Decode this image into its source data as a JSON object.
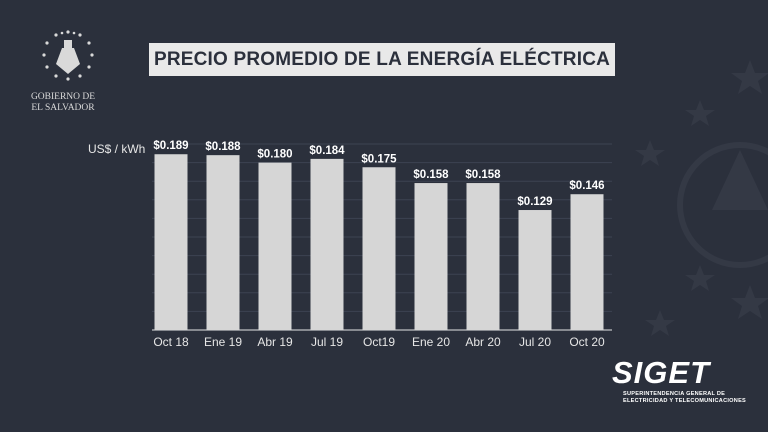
{
  "header": {
    "title": "PRECIO PROMEDIO DE LA ENERGÍA ELÉCTRICA"
  },
  "government": {
    "line1": "GOBIERNO DE",
    "line2": "EL SALVADOR"
  },
  "footer": {
    "logo_name": "SIGET",
    "logo_sub1": "SUPERINTENDENCIA GENERAL DE",
    "logo_sub2": "ELECTRICIDAD Y TELECOMUNICACIONES"
  },
  "colors": {
    "background": "#2b303c",
    "bar": "#d6d6d6",
    "text": "#ffffff"
  },
  "chart_data": {
    "type": "bar",
    "title": "PRECIO PROMEDIO DE LA ENERGÍA ELÉCTRICA",
    "ylabel": "US$ / kWh",
    "xlabel": "",
    "categories": [
      "Oct 18",
      "Ene 19",
      "Abr 19",
      "Jul 19",
      "Oct19",
      "Ene 20",
      "Abr 20",
      "Jul 20",
      "Oct 20"
    ],
    "values": [
      0.189,
      0.188,
      0.18,
      0.184,
      0.175,
      0.158,
      0.158,
      0.129,
      0.146
    ],
    "value_labels": [
      "$0.189",
      "$0.188",
      "$0.180",
      "$0.184",
      "$0.175",
      "$0.158",
      "$0.158",
      "$0.129",
      "$0.146"
    ],
    "ylim": [
      0,
      0.2
    ],
    "grid": true,
    "legend": "none"
  }
}
